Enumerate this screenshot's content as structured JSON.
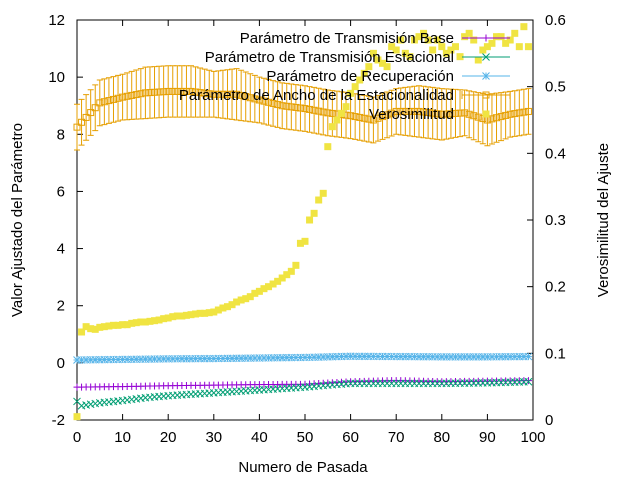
{
  "chart_data": {
    "type": "line",
    "xlabel": "Numero de Pasada",
    "ylabel": "Valor Ajustado del Parámetro",
    "y2label": "Verosimilitud del Ajuste",
    "xlim": [
      0,
      100
    ],
    "ylim": [
      -2,
      12
    ],
    "y2lim": [
      0,
      0.6
    ],
    "x_ticks": [
      0,
      10,
      20,
      30,
      40,
      50,
      60,
      70,
      80,
      90,
      100
    ],
    "y_ticks": [
      -2,
      0,
      2,
      4,
      6,
      8,
      10,
      12
    ],
    "y2_ticks": [
      0,
      0.1,
      0.2,
      0.3,
      0.4,
      0.5,
      0.6
    ],
    "grid": false,
    "legend_position": "top-right",
    "series": [
      {
        "name": "Parámetro de Transmisión Base",
        "color": "#9400d3",
        "marker": "plus",
        "axis": "y1",
        "x": [
          0,
          10,
          20,
          30,
          40,
          50,
          60,
          70,
          80,
          90,
          99
        ],
        "y": [
          -0.85,
          -0.83,
          -0.8,
          -0.78,
          -0.76,
          -0.75,
          -0.66,
          -0.62,
          -0.66,
          -0.64,
          -0.62
        ]
      },
      {
        "name": "Parámetro de Transmisión Estacional",
        "color": "#009e73",
        "marker": "x",
        "axis": "y1",
        "x": [
          0,
          1,
          5,
          10,
          15,
          20,
          30,
          40,
          50,
          55,
          60,
          70,
          80,
          90,
          99
        ],
        "y": [
          -1.35,
          -1.5,
          -1.4,
          -1.32,
          -1.22,
          -1.15,
          -1.05,
          -0.95,
          -0.85,
          -0.78,
          -0.72,
          -0.72,
          -0.72,
          -0.7,
          -0.66
        ]
      },
      {
        "name": "Parámetro de Recuperación",
        "color": "#56b4e9",
        "marker": "star",
        "axis": "y1",
        "x": [
          0,
          10,
          20,
          30,
          40,
          50,
          60,
          70,
          80,
          90,
          99
        ],
        "y": [
          0.1,
          0.12,
          0.14,
          0.15,
          0.17,
          0.19,
          0.23,
          0.22,
          0.21,
          0.21,
          0.22
        ]
      },
      {
        "name": "Parámetro de Ancho de la Estacionalidad",
        "color": "#e69f00",
        "marker": "open-square",
        "axis": "y1",
        "error_bars": true,
        "x": [
          0,
          5,
          10,
          15,
          20,
          25,
          30,
          35,
          40,
          45,
          50,
          55,
          60,
          65,
          70,
          75,
          80,
          85,
          90,
          95,
          99
        ],
        "y": [
          8.25,
          9.1,
          9.3,
          9.45,
          9.5,
          9.5,
          9.4,
          9.4,
          9.2,
          9.0,
          8.9,
          8.75,
          8.65,
          8.5,
          8.8,
          8.8,
          8.7,
          8.75,
          8.5,
          8.7,
          8.8
        ],
        "err": [
          0.8,
          0.8,
          0.8,
          0.9,
          0.9,
          0.9,
          0.8,
          0.9,
          0.8,
          0.8,
          0.8,
          0.8,
          0.8,
          0.8,
          0.8,
          0.9,
          0.9,
          0.8,
          0.9,
          0.8,
          0.8
        ]
      },
      {
        "name": "Verosimilitud",
        "color": "#f0e442",
        "marker": "filled-square",
        "axis": "y2",
        "x": [
          0,
          1,
          2,
          3,
          4,
          5,
          6,
          7,
          8,
          9,
          10,
          11,
          12,
          13,
          14,
          15,
          16,
          17,
          18,
          19,
          20,
          21,
          22,
          23,
          24,
          25,
          26,
          27,
          28,
          29,
          30,
          31,
          32,
          33,
          34,
          35,
          36,
          37,
          38,
          39,
          40,
          41,
          42,
          43,
          44,
          45,
          46,
          47,
          48,
          49,
          50,
          51,
          52,
          53,
          54,
          55,
          56,
          57,
          58,
          59,
          60,
          61,
          62,
          63,
          64,
          65,
          66,
          67,
          68,
          69,
          70,
          71,
          72,
          73,
          74,
          75,
          76,
          77,
          78,
          79,
          80,
          81,
          82,
          83,
          84,
          85,
          86,
          87,
          88,
          89,
          90,
          91,
          92,
          93,
          94,
          95,
          96,
          97,
          98,
          99
        ],
        "y": [
          0.005,
          0.132,
          0.14,
          0.137,
          0.136,
          0.139,
          0.14,
          0.141,
          0.142,
          0.142,
          0.143,
          0.143,
          0.145,
          0.146,
          0.147,
          0.147,
          0.148,
          0.149,
          0.15,
          0.152,
          0.153,
          0.155,
          0.156,
          0.156,
          0.157,
          0.158,
          0.159,
          0.16,
          0.16,
          0.161,
          0.162,
          0.165,
          0.168,
          0.17,
          0.173,
          0.177,
          0.18,
          0.182,
          0.185,
          0.19,
          0.193,
          0.197,
          0.2,
          0.204,
          0.208,
          0.213,
          0.218,
          0.223,
          0.232,
          0.265,
          0.268,
          0.3,
          0.31,
          0.33,
          0.34,
          0.41,
          0.44,
          0.45,
          0.46,
          0.47,
          0.49,
          0.5,
          0.51,
          0.52,
          0.53,
          0.55,
          0.54,
          0.535,
          0.53,
          0.56,
          0.555,
          0.57,
          0.55,
          0.545,
          0.57,
          0.575,
          0.58,
          0.57,
          0.555,
          0.57,
          0.56,
          0.55,
          0.555,
          0.56,
          0.545,
          0.575,
          0.58,
          0.57,
          0.54,
          0.555,
          0.56,
          0.565,
          0.575,
          0.575,
          0.565,
          0.57,
          0.58,
          0.56,
          0.59,
          0.56
        ]
      }
    ]
  }
}
